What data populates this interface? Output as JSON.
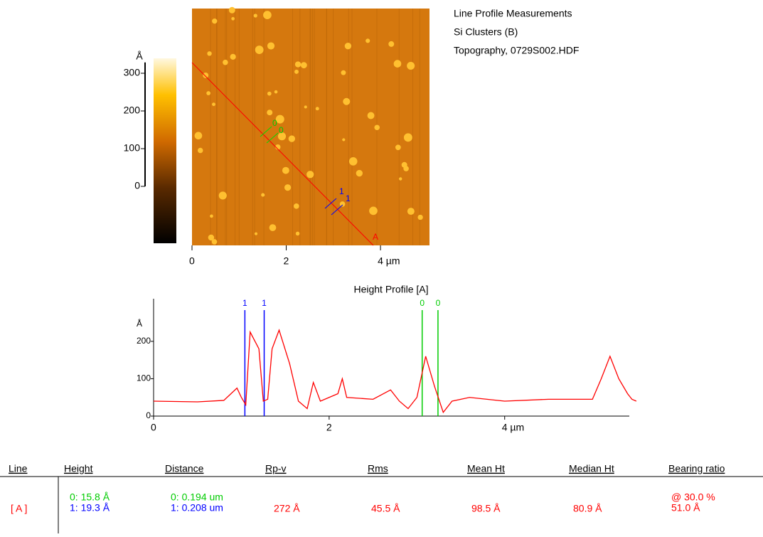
{
  "header": {
    "lines": [
      "Line Profile Measurements",
      "Si Clusters (B)",
      "Topography,  0729S002.HDF"
    ]
  },
  "image": {
    "colorbar": {
      "unit": "Å",
      "ylim": [
        -150,
        340
      ],
      "yticks": [
        0,
        100,
        200,
        300
      ]
    },
    "xlim": [
      0,
      5.04
    ],
    "xticks": [
      0,
      2,
      {
        "value": 4,
        "label": "4 µm"
      }
    ],
    "line_label": "A",
    "cursor_labels": [
      "0",
      "0",
      "1",
      "1"
    ]
  },
  "chart_data": {
    "type": "line",
    "title": "Height Profile [A]",
    "y_unit": "Å",
    "x": [
      0,
      0.5,
      0.8,
      0.95,
      1.0,
      1.05,
      1.1,
      1.2,
      1.25,
      1.3,
      1.35,
      1.43,
      1.55,
      1.65,
      1.75,
      1.82,
      1.9,
      2.0,
      2.1,
      2.15,
      2.2,
      2.5,
      2.7,
      2.8,
      2.9,
      3.0,
      3.1,
      3.2,
      3.3,
      3.4,
      3.6,
      4.0,
      4.5,
      5.0,
      5.1,
      5.2,
      5.3,
      5.4,
      5.45,
      5.5
    ],
    "series": [
      {
        "color": "#ff0000",
        "values": [
          40,
          38,
          42,
          75,
          50,
          30,
          225,
          180,
          40,
          45,
          180,
          230,
          140,
          40,
          20,
          90,
          40,
          50,
          60,
          100,
          50,
          45,
          70,
          40,
          20,
          50,
          160,
          80,
          10,
          40,
          50,
          40,
          45,
          45,
          100,
          160,
          100,
          60,
          45,
          40
        ]
      }
    ],
    "xlim": [
      0,
      5.42
    ],
    "ylim": [
      0,
      314
    ],
    "yticks": [
      0,
      100,
      200
    ],
    "xticks": [
      0,
      2,
      {
        "value": 4,
        "label": "4 µm"
      }
    ],
    "cursors": [
      {
        "x": 1.04,
        "label": "1",
        "color": "#0000ff"
      },
      {
        "x": 1.26,
        "label": "1",
        "color": "#0000ff"
      },
      {
        "x": 3.06,
        "label": "0",
        "color": "#00cc00"
      },
      {
        "x": 3.24,
        "label": "0",
        "color": "#00cc00"
      }
    ]
  },
  "table": {
    "headers": [
      "Line",
      "Height",
      "Distance",
      "Rp-v",
      "Rms",
      "Mean Ht",
      "Median Ht",
      "Bearing ratio"
    ],
    "rows": [
      [
        "[ A ]",
        [
          "0:  15.8 Å",
          "1:  19.3 Å"
        ],
        [
          "0:  0.194 um",
          "1:  0.208 um"
        ],
        "272 Å",
        "45.5 Å",
        "98.5 Å",
        "80.9 Å",
        [
          "@ 30.0 %",
          "51.0 Å"
        ]
      ]
    ]
  }
}
